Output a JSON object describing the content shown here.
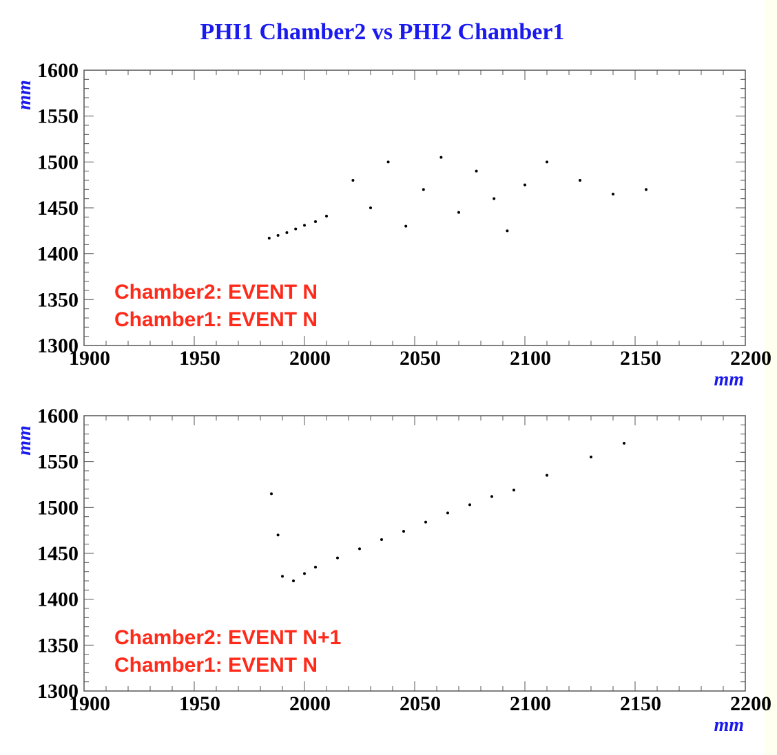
{
  "page": {
    "title": "PHI1 Chamber2 vs PHI2 Chamber1",
    "title_color": "#1a1aee",
    "background": "#ffffff",
    "annotation_color": "#ff2a1a"
  },
  "chart_data": [
    {
      "type": "scatter",
      "xlabel": "mm",
      "ylabel": "mm",
      "xlim": [
        1900,
        2200
      ],
      "ylim": [
        1300,
        1600
      ],
      "xticks": [
        "1900",
        "1950",
        "2000",
        "2050",
        "2100",
        "2150",
        "2200"
      ],
      "yticks": [
        "1300",
        "1350",
        "1400",
        "1450",
        "1500",
        "1550",
        "1600"
      ],
      "annotations": [
        "Chamber2: EVENT N",
        "Chamber1: EVENT N"
      ],
      "series": [
        {
          "x": [
            1984,
            1988,
            1992,
            1996,
            2000,
            2005,
            2010,
            2022,
            2030,
            2038,
            2046,
            2054,
            2062,
            2070,
            2078,
            2086,
            2092,
            2100,
            2110,
            2125,
            2140,
            2155
          ],
          "y": [
            1417,
            1420,
            1423,
            1427,
            1431,
            1435,
            1441,
            1480,
            1450,
            1500,
            1430,
            1470,
            1505,
            1445,
            1490,
            1460,
            1425,
            1475,
            1500,
            1480,
            1465,
            1470
          ]
        }
      ]
    },
    {
      "type": "scatter",
      "xlabel": "mm",
      "ylabel": "mm",
      "xlim": [
        1900,
        2200
      ],
      "ylim": [
        1300,
        1600
      ],
      "xticks": [
        "1900",
        "1950",
        "2000",
        "2050",
        "2100",
        "2150",
        "2200"
      ],
      "yticks": [
        "1300",
        "1350",
        "1400",
        "1450",
        "1500",
        "1550",
        "1600"
      ],
      "annotations": [
        "Chamber2: EVENT N+1",
        "Chamber1: EVENT N"
      ],
      "series": [
        {
          "x": [
            1985,
            1988,
            1990,
            1995,
            2000,
            2005,
            2015,
            2025,
            2035,
            2045,
            2055,
            2065,
            2075,
            2085,
            2095,
            2110,
            2130,
            2145
          ],
          "y": [
            1515,
            1470,
            1425,
            1420,
            1428,
            1435,
            1445,
            1455,
            1465,
            1474,
            1484,
            1494,
            1503,
            1512,
            1519,
            1535,
            1555,
            1570
          ]
        }
      ]
    }
  ]
}
